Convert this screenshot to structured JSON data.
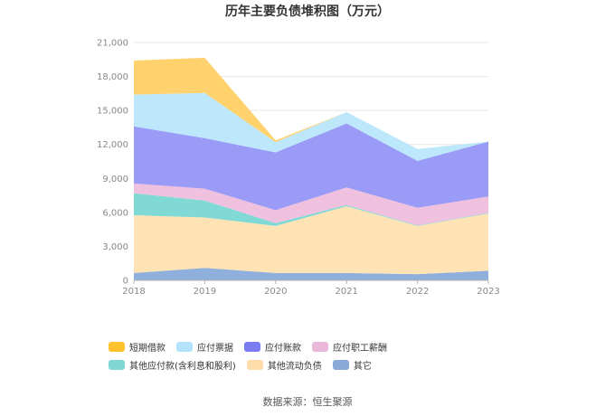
{
  "chart_data": {
    "type": "area",
    "stacked": true,
    "title": "历年主要负债堆积图（万元）",
    "categories": [
      "2018",
      "2019",
      "2020",
      "2021",
      "2022",
      "2023"
    ],
    "ylim": [
      0,
      21000
    ],
    "yticks": [
      "0",
      "3,000",
      "6,000",
      "9,000",
      "12,000",
      "15,000",
      "18,000",
      "21,000"
    ],
    "grid": true,
    "legend_position": "bottom",
    "series": [
      {
        "name": "其它",
        "color": "#8fb0dc",
        "values": [
          650,
          1100,
          650,
          650,
          550,
          850
        ]
      },
      {
        "name": "其他流动负债",
        "color": "#ffe3b5",
        "values": [
          5100,
          4450,
          4150,
          5900,
          4250,
          5050
        ]
      },
      {
        "name": "其他应付款(含利息和股利)",
        "color": "#80d9d5",
        "values": [
          1950,
          1500,
          250,
          100,
          50,
          50
        ]
      },
      {
        "name": "应付职工薪酬",
        "color": "#efc1de",
        "values": [
          850,
          1050,
          1150,
          1550,
          1550,
          1450
        ]
      },
      {
        "name": "应付账款",
        "color": "#9a9af7",
        "values": [
          5050,
          4450,
          5100,
          5650,
          4150,
          4850
        ]
      },
      {
        "name": "应付票据",
        "color": "#bde8fb",
        "values": [
          2800,
          4000,
          900,
          1000,
          1050,
          0
        ]
      },
      {
        "name": "短期借款",
        "color": "#ffd26e",
        "values": [
          3000,
          3100,
          150,
          0,
          0,
          0
        ]
      }
    ]
  },
  "legend": [
    {
      "label": "短期借款",
      "color": "#ffc12e"
    },
    {
      "label": "应付票据",
      "color": "#b3e3fb"
    },
    {
      "label": "应付账款",
      "color": "#7c7cf2"
    },
    {
      "label": "应付职工薪酬",
      "color": "#eab9da"
    },
    {
      "label": "其他应付款(含利息和股利)",
      "color": "#7fd6d2"
    },
    {
      "label": "其他流动负债",
      "color": "#ffdcaa"
    },
    {
      "label": "其它",
      "color": "#8aa9d8"
    }
  ],
  "source": "数据来源：恒生聚源"
}
